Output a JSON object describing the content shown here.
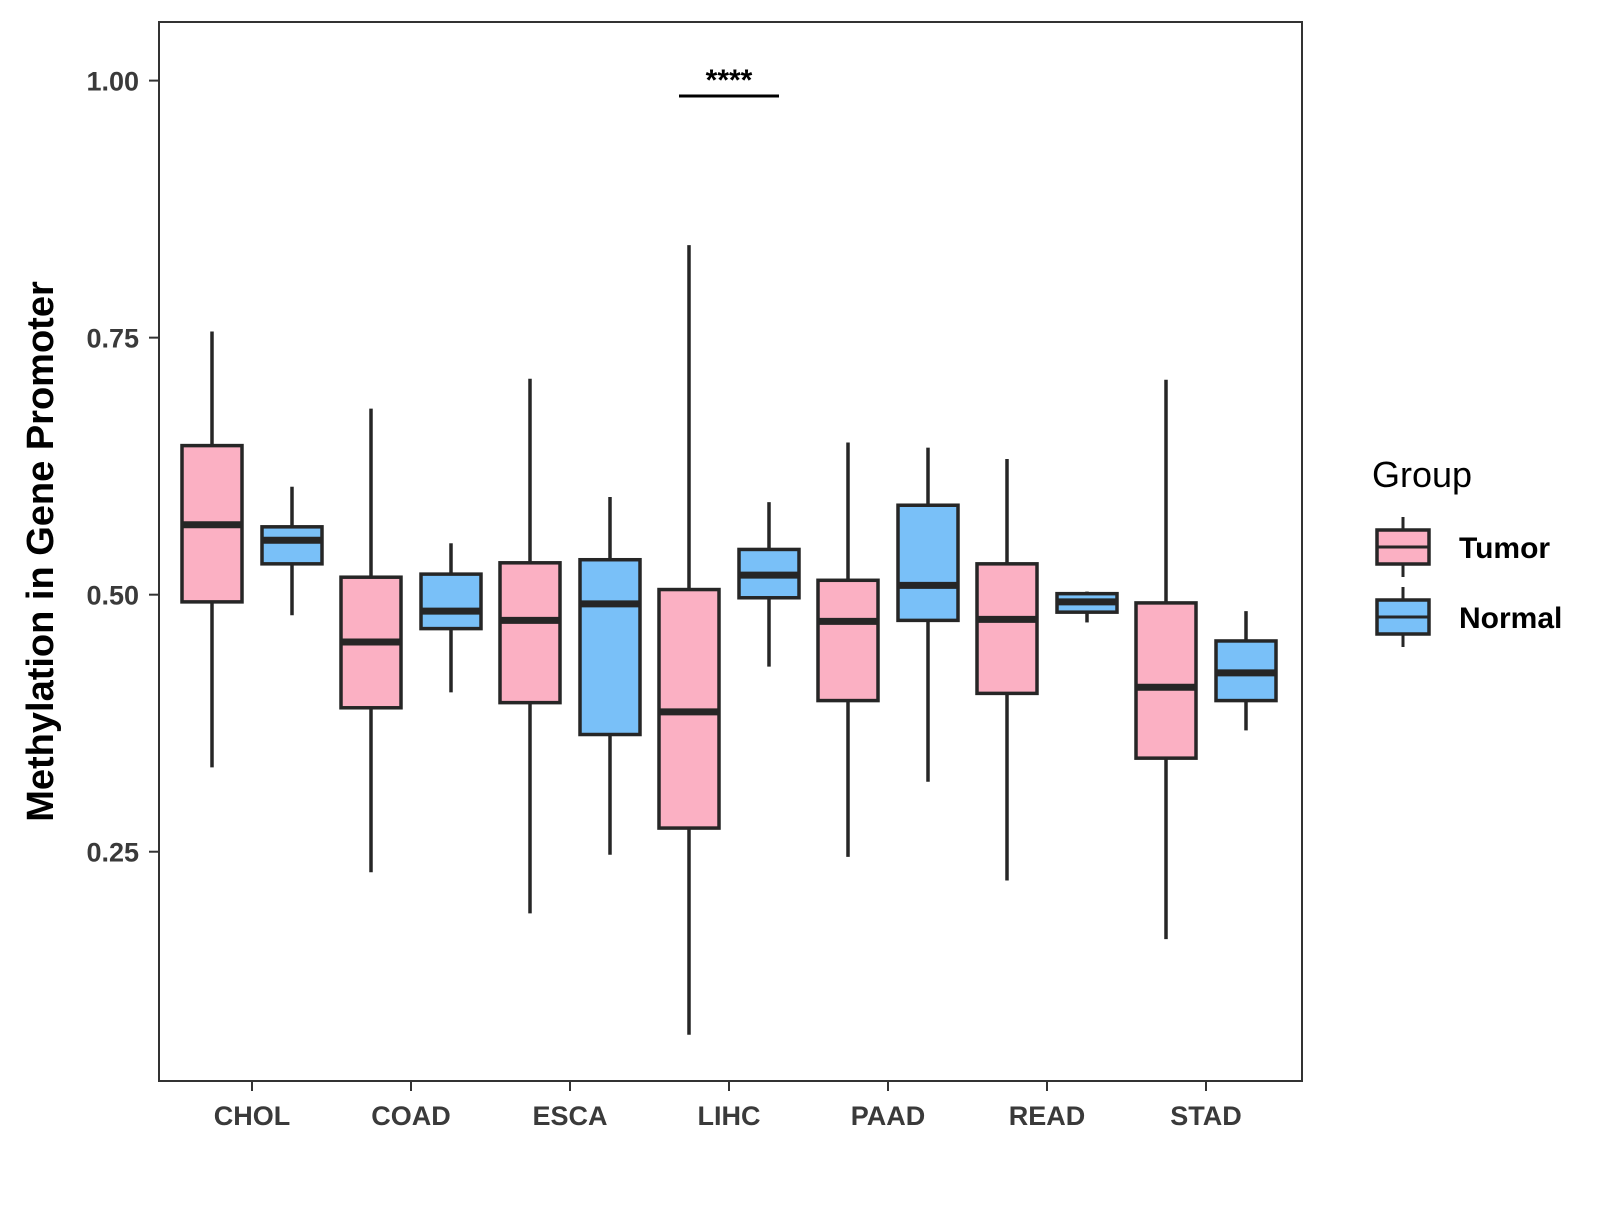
{
  "chart_data": {
    "type": "boxplot",
    "title": "",
    "xlabel": "",
    "ylabel": "Methylation in Gene Promoter",
    "ylim": [
      0.027,
      1.057
    ],
    "yticks": [
      0.25,
      0.5,
      0.75,
      1.0
    ],
    "ytick_labels": [
      "0.25",
      "0.50",
      "0.75",
      "1.00"
    ],
    "categories": [
      "CHOL",
      "COAD",
      "ESCA",
      "LIHC",
      "PAAD",
      "READ",
      "STAD"
    ],
    "legend": {
      "title": "Group",
      "position": "right",
      "entries": [
        "Tumor",
        "Normal"
      ]
    },
    "colors": {
      "Tumor": "#FBB0C3",
      "Normal": "#79C0F8",
      "outline": "#262626"
    },
    "series": [
      {
        "name": "Tumor",
        "boxes": [
          {
            "category": "CHOL",
            "whisker_low": 0.332,
            "q1": 0.493,
            "median": 0.568,
            "q3": 0.645,
            "whisker_high": 0.756
          },
          {
            "category": "COAD",
            "whisker_low": 0.23,
            "q1": 0.39,
            "median": 0.454,
            "q3": 0.517,
            "whisker_high": 0.681
          },
          {
            "category": "ESCA",
            "whisker_low": 0.19,
            "q1": 0.395,
            "median": 0.475,
            "q3": 0.531,
            "whisker_high": 0.71
          },
          {
            "category": "LIHC",
            "whisker_low": 0.072,
            "q1": 0.273,
            "median": 0.386,
            "q3": 0.505,
            "whisker_high": 0.84
          },
          {
            "category": "PAAD",
            "whisker_low": 0.245,
            "q1": 0.397,
            "median": 0.474,
            "q3": 0.514,
            "whisker_high": 0.648
          },
          {
            "category": "READ",
            "whisker_low": 0.222,
            "q1": 0.404,
            "median": 0.476,
            "q3": 0.53,
            "whisker_high": 0.632
          },
          {
            "category": "STAD",
            "whisker_low": 0.165,
            "q1": 0.341,
            "median": 0.41,
            "q3": 0.492,
            "whisker_high": 0.709
          }
        ]
      },
      {
        "name": "Normal",
        "boxes": [
          {
            "category": "CHOL",
            "whisker_low": 0.48,
            "q1": 0.53,
            "median": 0.553,
            "q3": 0.566,
            "whisker_high": 0.605
          },
          {
            "category": "COAD",
            "whisker_low": 0.405,
            "q1": 0.467,
            "median": 0.484,
            "q3": 0.52,
            "whisker_high": 0.55
          },
          {
            "category": "ESCA",
            "whisker_low": 0.247,
            "q1": 0.364,
            "median": 0.491,
            "q3": 0.534,
            "whisker_high": 0.595
          },
          {
            "category": "LIHC",
            "whisker_low": 0.43,
            "q1": 0.497,
            "median": 0.519,
            "q3": 0.544,
            "whisker_high": 0.59
          },
          {
            "category": "PAAD",
            "whisker_low": 0.318,
            "q1": 0.475,
            "median": 0.509,
            "q3": 0.587,
            "whisker_high": 0.643
          },
          {
            "category": "READ",
            "whisker_low": 0.473,
            "q1": 0.483,
            "median": 0.493,
            "q3": 0.501,
            "whisker_high": 0.503
          },
          {
            "category": "STAD",
            "whisker_low": 0.368,
            "q1": 0.397,
            "median": 0.424,
            "q3": 0.455,
            "whisker_high": 0.484
          }
        ]
      }
    ],
    "annotations": [
      {
        "category": "LIHC",
        "label": "****",
        "y": 0.985
      }
    ]
  }
}
